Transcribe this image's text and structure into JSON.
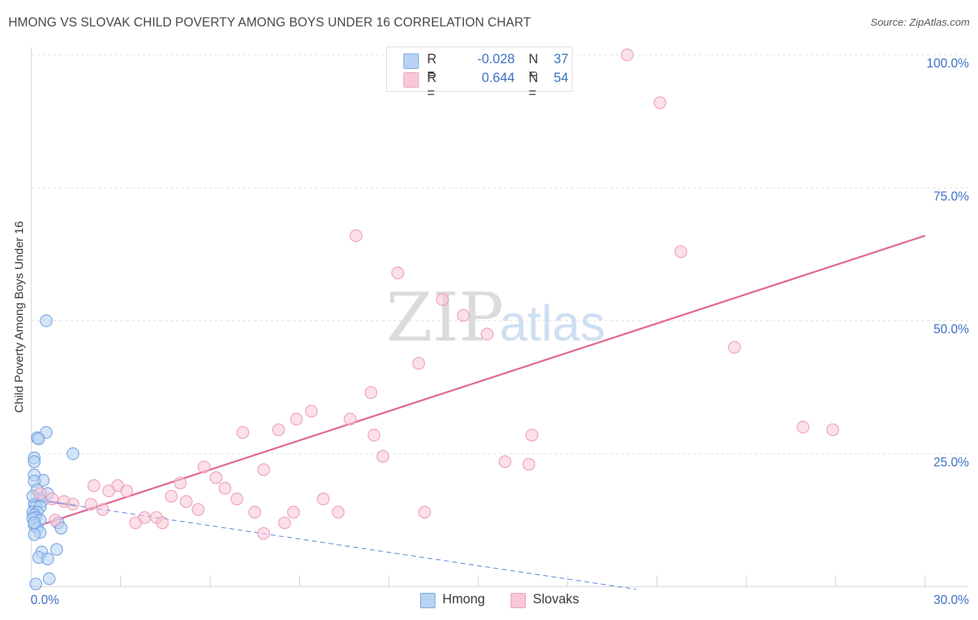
{
  "title": "HMONG VS SLOVAK CHILD POVERTY AMONG BOYS UNDER 16 CORRELATION CHART",
  "source": "Source: ZipAtlas.com",
  "watermark": {
    "zip": "ZIP",
    "atlas": "atlas"
  },
  "legend": {
    "rows": [
      {
        "r_label": "R =",
        "r_value": "-0.028",
        "n_label": "N =",
        "n_value": "37"
      },
      {
        "r_label": "R =",
        "r_value": "0.644",
        "n_label": "N =",
        "n_value": "54"
      }
    ]
  },
  "bottom_legend": {
    "hmong": "Hmong",
    "slovaks": "Slovaks"
  },
  "colors": {
    "hmong_fill": "#b9d3f3",
    "hmong_stroke": "#6f9fe0",
    "hmong_line": "#3b6fd4",
    "slovak_fill": "#f9c7d7",
    "slovak_stroke": "#ec9ab5",
    "slovak_line": "#e0648f",
    "axis_text": "#3a6fc4",
    "grid": "#dddddd"
  },
  "chart_data": {
    "type": "scatter",
    "title": "HMONG VS SLOVAK CHILD POVERTY AMONG BOYS UNDER 16 CORRELATION CHART",
    "xlabel": "",
    "ylabel": "Child Poverty Among Boys Under 16",
    "xlim": [
      0,
      30
    ],
    "ylim": [
      0,
      100
    ],
    "x_tick_labels": [
      "0.0%",
      "30.0%"
    ],
    "y_ticks": [
      25,
      50,
      75,
      100
    ],
    "y_tick_labels": [
      "25.0%",
      "50.0%",
      "75.0%",
      "100.0%"
    ],
    "series": [
      {
        "name": "Hmong",
        "r": -0.028,
        "n": 37,
        "trend": {
          "x0": 0,
          "y0": 16.5,
          "x1": 20.3,
          "y1": -0.5,
          "solid_until_x": 1.5
        },
        "points": [
          [
            0.5,
            50.0
          ],
          [
            0.5,
            29.0
          ],
          [
            0.2,
            28.0
          ],
          [
            0.25,
            27.8
          ],
          [
            1.4,
            25.0
          ],
          [
            0.1,
            24.2
          ],
          [
            0.1,
            23.5
          ],
          [
            0.1,
            21.0
          ],
          [
            0.4,
            20.0
          ],
          [
            0.1,
            19.8
          ],
          [
            0.2,
            18.2
          ],
          [
            0.55,
            17.5
          ],
          [
            0.3,
            16.5
          ],
          [
            0.35,
            16.0
          ],
          [
            0.1,
            15.5
          ],
          [
            0.15,
            15.2
          ],
          [
            0.3,
            15.0
          ],
          [
            0.05,
            14.0
          ],
          [
            0.2,
            14.0
          ],
          [
            0.1,
            13.5
          ],
          [
            0.15,
            13.0
          ],
          [
            0.05,
            12.8
          ],
          [
            0.3,
            12.5
          ],
          [
            0.9,
            12.0
          ],
          [
            0.1,
            11.5
          ],
          [
            0.2,
            11.0
          ],
          [
            1.0,
            11.0
          ],
          [
            0.3,
            10.2
          ],
          [
            0.1,
            9.8
          ],
          [
            0.85,
            7.0
          ],
          [
            0.35,
            6.5
          ],
          [
            0.25,
            5.5
          ],
          [
            0.55,
            5.2
          ],
          [
            0.6,
            1.5
          ],
          [
            0.15,
            0.5
          ],
          [
            0.05,
            17.0
          ],
          [
            0.1,
            12.0
          ]
        ]
      },
      {
        "name": "Slovaks",
        "r": 0.644,
        "n": 54,
        "trend": {
          "x0": 0,
          "y0": 11.0,
          "x1": 30,
          "y1": 66.0
        },
        "points": [
          [
            20.0,
            100.0
          ],
          [
            21.1,
            91.0
          ],
          [
            10.9,
            66.0
          ],
          [
            21.8,
            63.0
          ],
          [
            12.3,
            59.0
          ],
          [
            13.8,
            54.0
          ],
          [
            14.5,
            51.0
          ],
          [
            15.3,
            47.5
          ],
          [
            23.6,
            45.0
          ],
          [
            13.0,
            42.0
          ],
          [
            11.4,
            36.5
          ],
          [
            9.4,
            33.0
          ],
          [
            8.9,
            31.5
          ],
          [
            10.7,
            31.5
          ],
          [
            25.9,
            30.0
          ],
          [
            26.9,
            29.5
          ],
          [
            8.3,
            29.5
          ],
          [
            7.1,
            29.0
          ],
          [
            11.5,
            28.5
          ],
          [
            16.8,
            28.5
          ],
          [
            11.8,
            24.5
          ],
          [
            15.9,
            23.5
          ],
          [
            16.7,
            23.0
          ],
          [
            5.8,
            22.5
          ],
          [
            7.8,
            22.0
          ],
          [
            6.2,
            20.5
          ],
          [
            5.0,
            19.5
          ],
          [
            2.1,
            19.0
          ],
          [
            2.9,
            19.0
          ],
          [
            6.5,
            18.5
          ],
          [
            2.6,
            18.0
          ],
          [
            3.2,
            18.0
          ],
          [
            4.7,
            17.0
          ],
          [
            0.7,
            16.5
          ],
          [
            1.1,
            16.0
          ],
          [
            5.2,
            16.0
          ],
          [
            6.9,
            16.5
          ],
          [
            9.8,
            16.5
          ],
          [
            2.0,
            15.5
          ],
          [
            1.4,
            15.5
          ],
          [
            2.4,
            14.5
          ],
          [
            5.6,
            14.5
          ],
          [
            7.5,
            14.0
          ],
          [
            8.8,
            14.0
          ],
          [
            10.3,
            14.0
          ],
          [
            13.2,
            14.0
          ],
          [
            3.8,
            13.0
          ],
          [
            4.2,
            13.0
          ],
          [
            0.8,
            12.5
          ],
          [
            3.5,
            12.0
          ],
          [
            4.4,
            12.0
          ],
          [
            8.5,
            12.0
          ],
          [
            7.8,
            10.0
          ],
          [
            0.3,
            17.5
          ]
        ]
      }
    ]
  }
}
